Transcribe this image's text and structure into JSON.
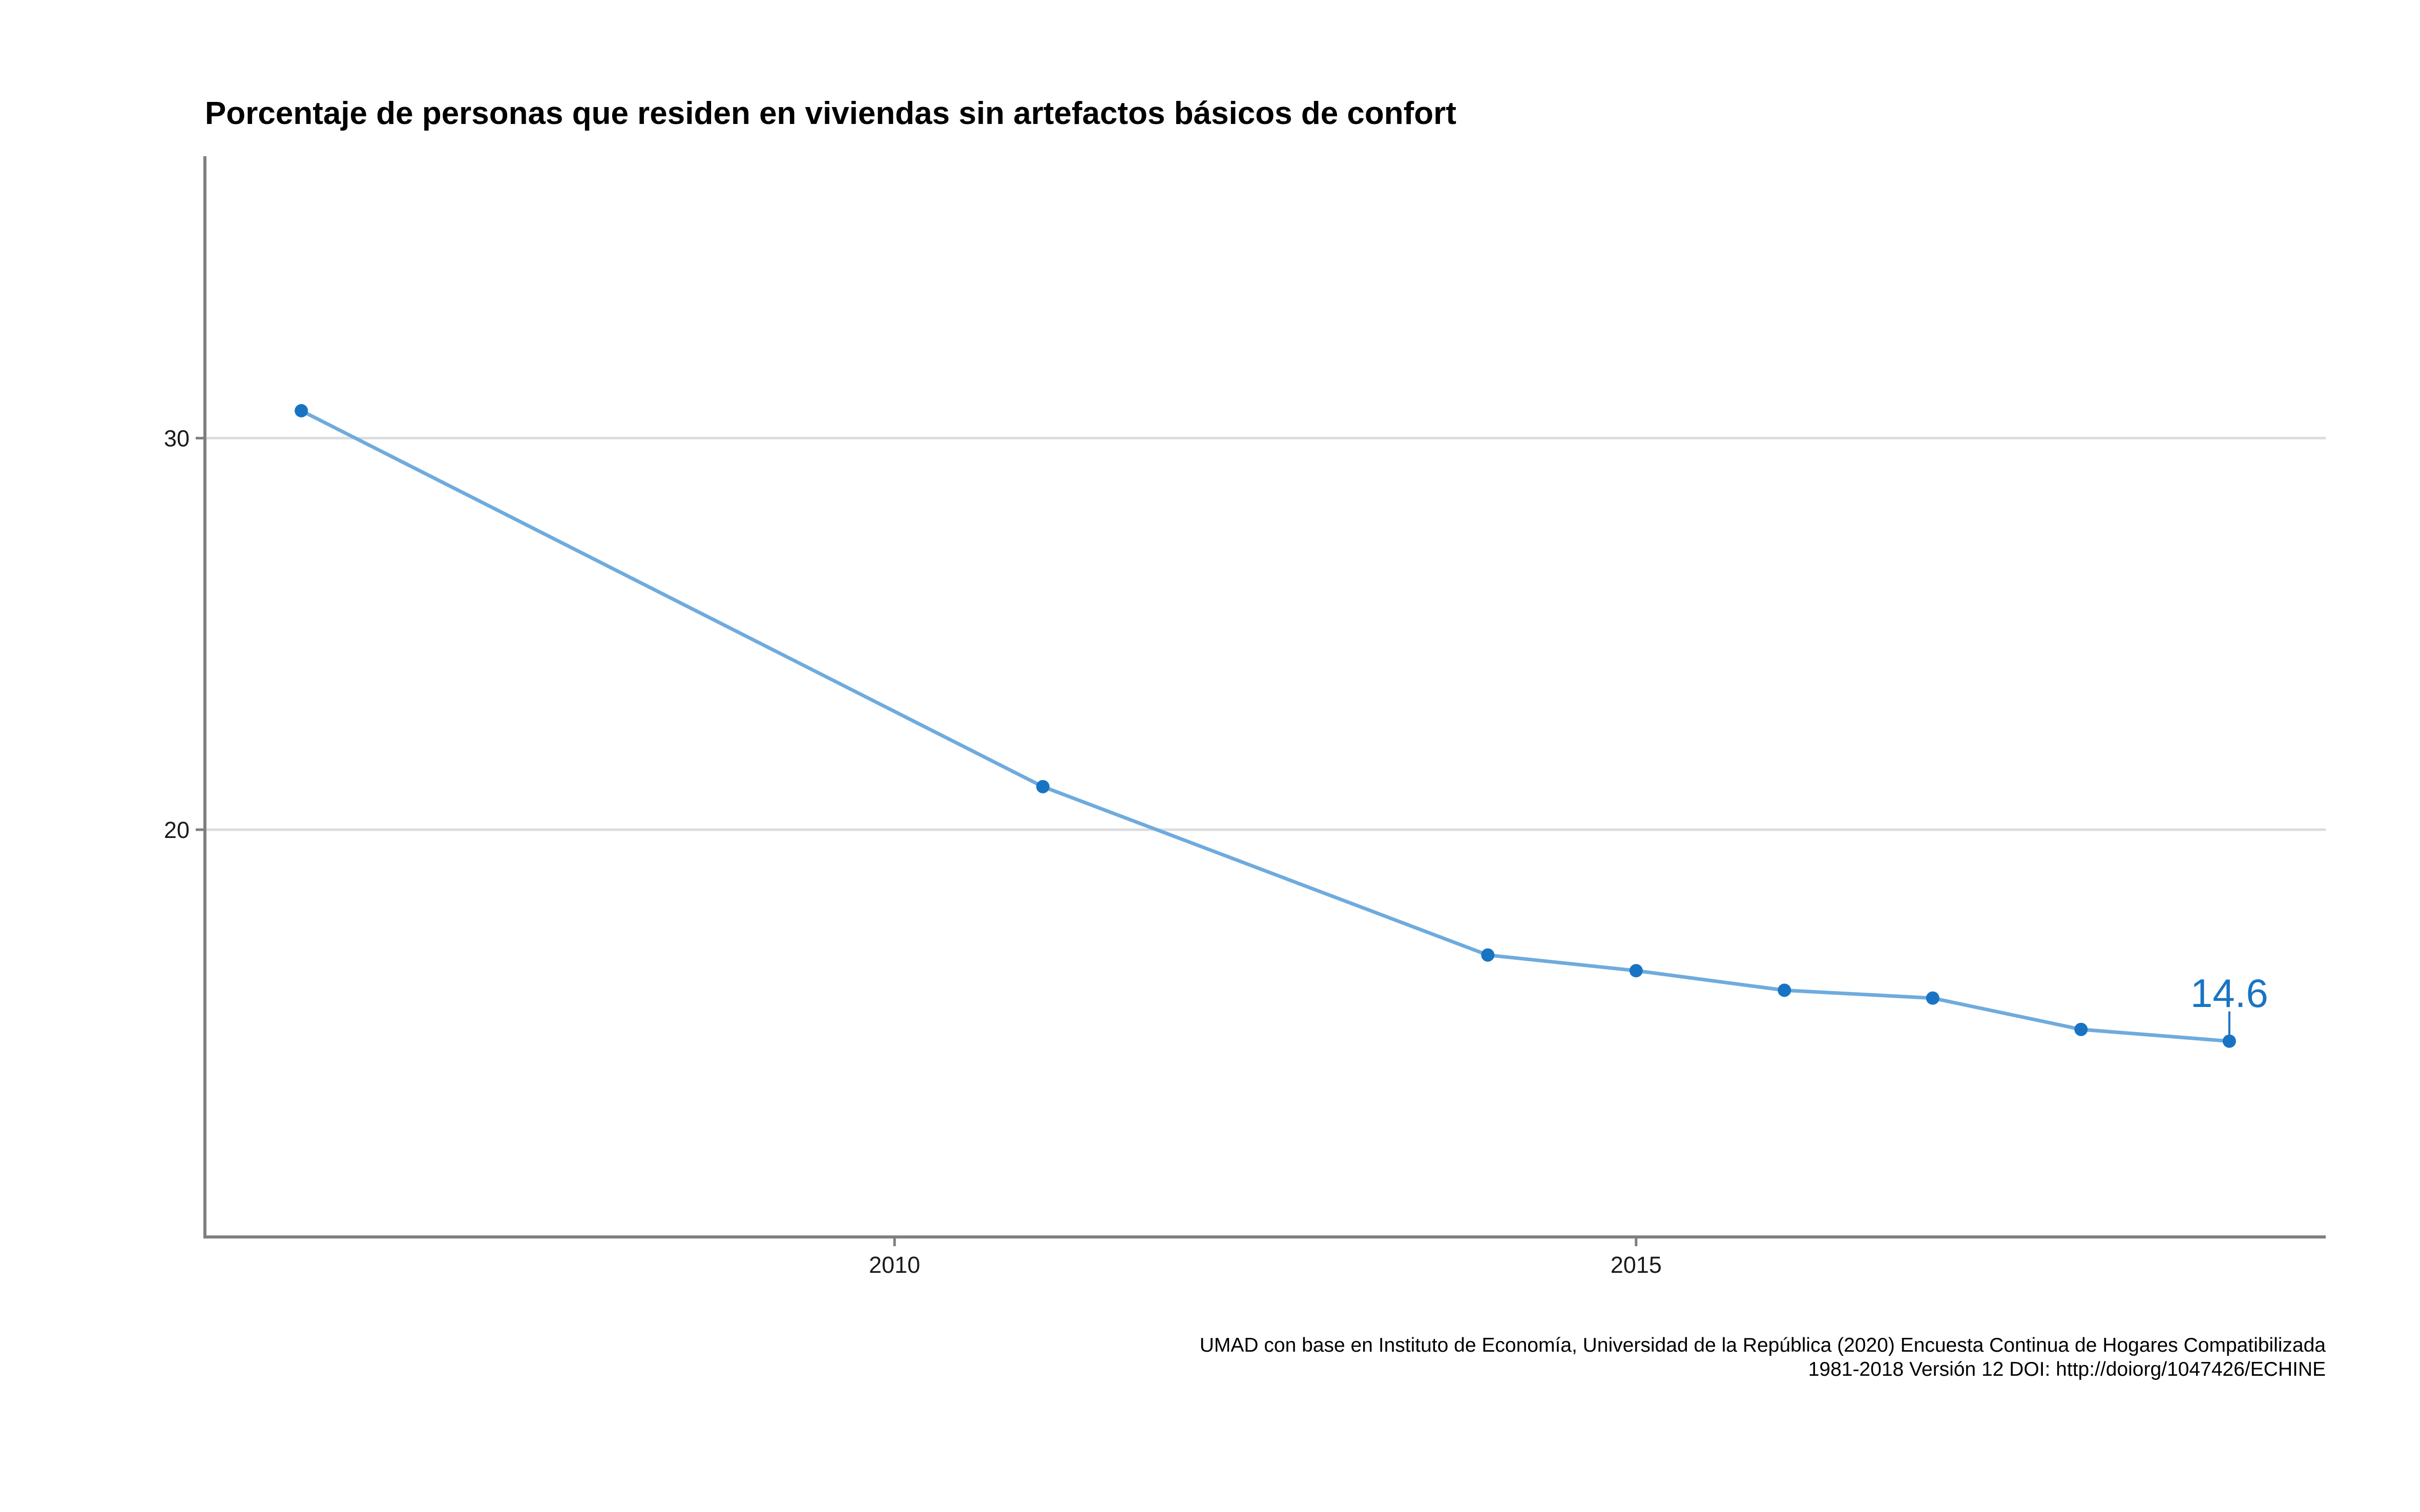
{
  "chart_data": {
    "type": "line",
    "title": "Porcentaje de personas que residen en viviendas sin artefactos básicos de confort",
    "xlabel": "",
    "ylabel": "",
    "x": [
      2006,
      2011,
      2014,
      2015,
      2016,
      2017,
      2018,
      2019
    ],
    "series": [
      {
        "values": [
          30.7,
          21.1,
          16.8,
          16.4,
          15.9,
          15.7,
          14.9,
          14.6
        ]
      }
    ],
    "xlim": [
      2005.35,
      2019.65
    ],
    "ylim": [
      9.6,
      37.2
    ],
    "x_ticks": [
      2010,
      2015
    ],
    "y_ticks": [
      20,
      30
    ],
    "x_tick_labels": [
      "2010",
      "2015"
    ],
    "y_tick_labels": [
      "20",
      "30"
    ],
    "grid": "horizontal-major",
    "last_point_label": "14.6",
    "line_color": "#6fabdd",
    "point_color": "#1874c3",
    "grid_color": "#dcdcdc",
    "axis_color": "#7f7f7f",
    "caption": [
      "UMAD con base en Instituto de Economía, Universidad de la República (2020) Encuesta Continua de Hogares Compatibilizada",
      "1981-2018 Versión 12 DOI: http://doiorg/1047426/ECHINE"
    ]
  }
}
